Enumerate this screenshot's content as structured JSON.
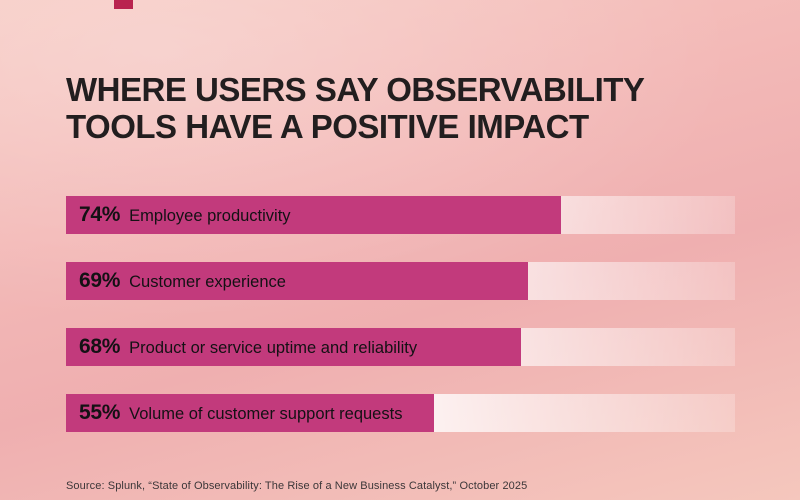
{
  "page": {
    "title": "WHERE USERS SAY OBSERVABILITY TOOLS HAVE A POSITIVE IMPACT",
    "source": "Source: Splunk, “State of Observability: The Rise of a New Business Catalyst,” October 2025"
  },
  "chart_data": {
    "type": "bar",
    "orientation": "horizontal",
    "title": "WHERE USERS SAY OBSERVABILITY TOOLS HAVE A POSITIVE IMPACT",
    "categories": [
      "Employee productivity",
      "Customer experience",
      "Product or service uptime and reliability",
      "Volume of customer support requests"
    ],
    "values": [
      74,
      69,
      68,
      55
    ],
    "value_labels": [
      "74%",
      "69%",
      "68%",
      "55%"
    ],
    "xlim": [
      0,
      100
    ],
    "grid": false,
    "legend": false,
    "source": "Source: Splunk, “State of Observability: The Rise of a New Business Catalyst,” October 2025",
    "colors": {
      "bar": "#c23a7c",
      "track": "#ffffff",
      "background": "#f3bab8",
      "text": "#141114",
      "title": "#221e1f"
    }
  },
  "bars": [
    {
      "pct": "74%",
      "label": "Employee productivity",
      "value": 74
    },
    {
      "pct": "69%",
      "label": "Customer experience",
      "value": 69
    },
    {
      "pct": "68%",
      "label": "Product or service uptime and reliability",
      "value": 68
    },
    {
      "pct": "55%",
      "label": "Volume of customer support requests",
      "value": 55
    }
  ]
}
